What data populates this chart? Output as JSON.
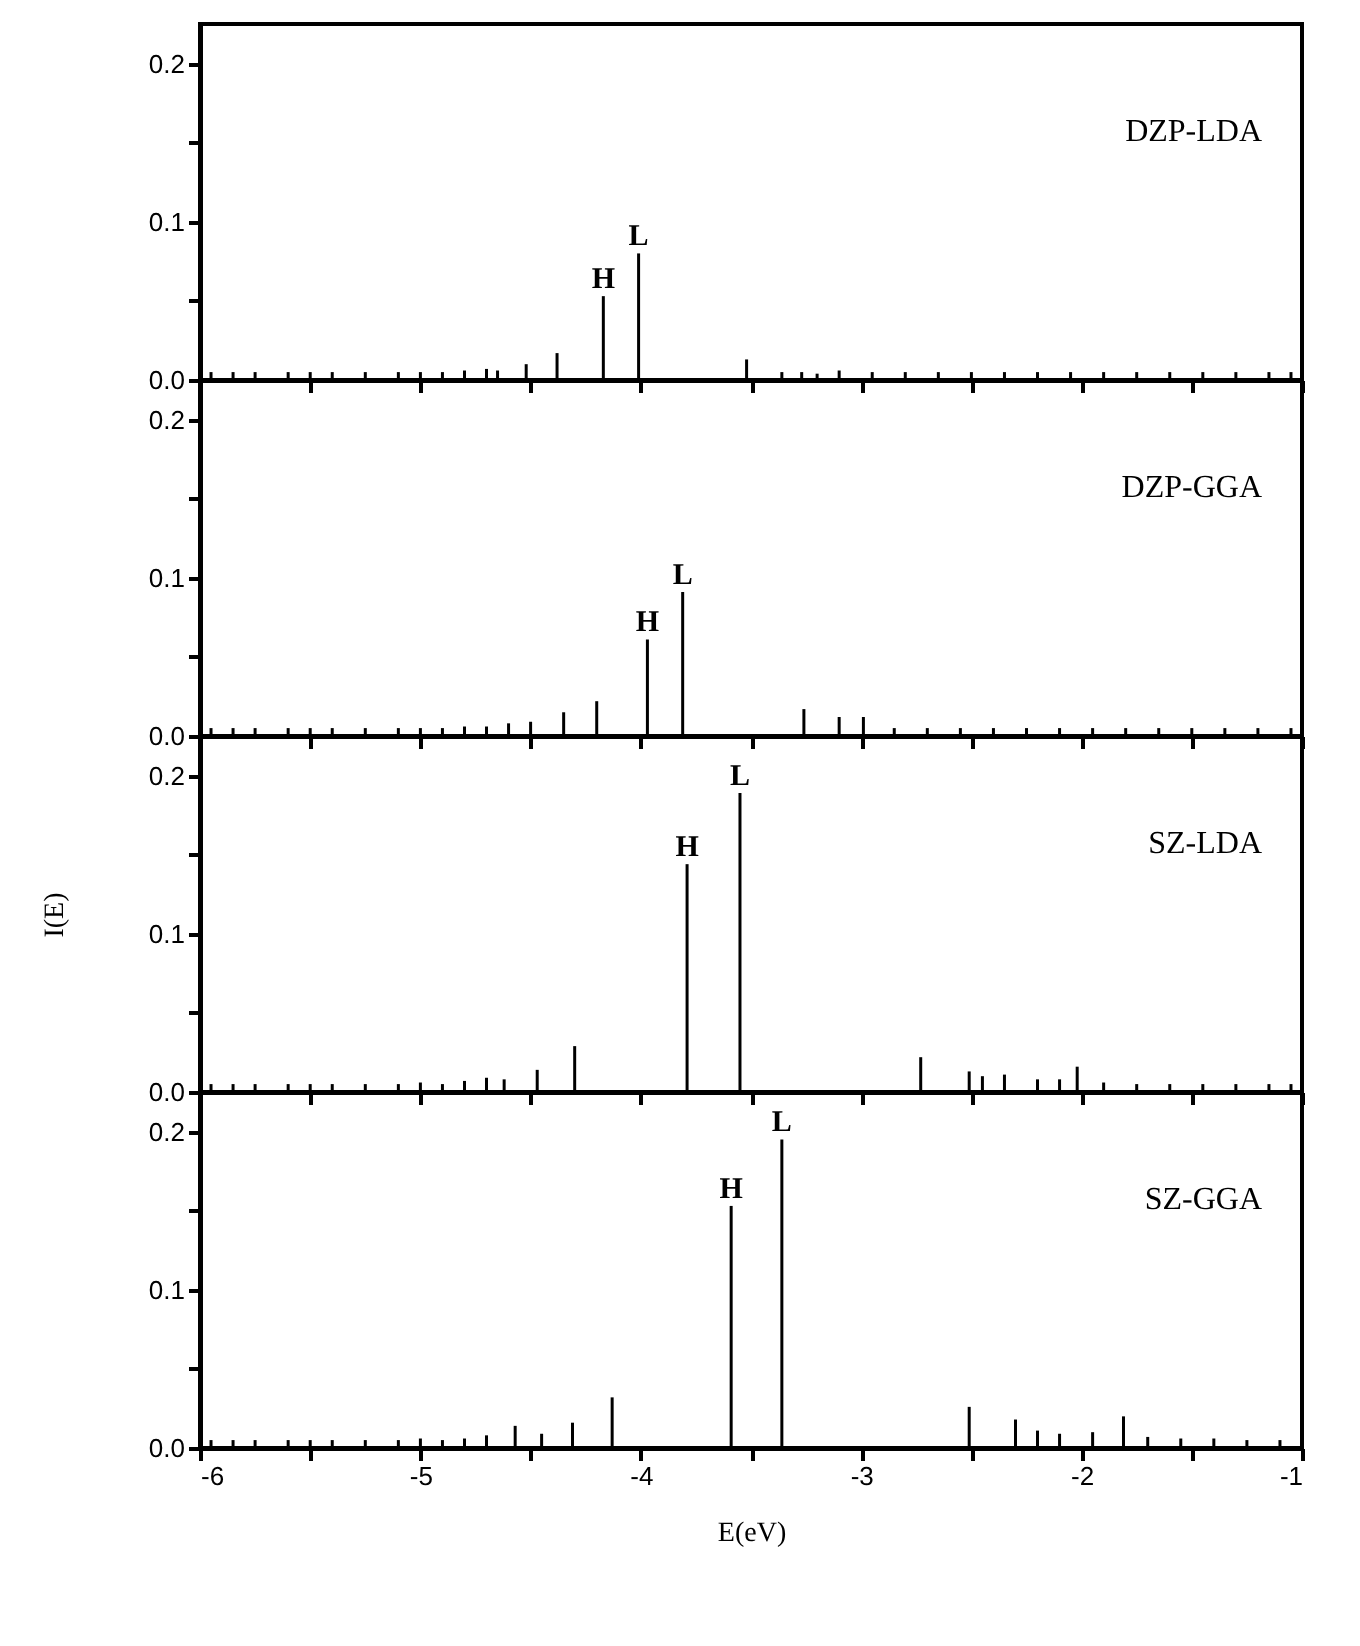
{
  "chart_data": [
    {
      "type": "bar",
      "color": "#000000",
      "xlim": [
        -6,
        -1
      ],
      "ylim": [
        0,
        0.225
      ],
      "tick_labels": "y",
      "xticks": [
        -6,
        {
          "value": -5.5,
          "label": null
        },
        -5,
        {
          "value": -4.5,
          "label": null
        },
        -4,
        {
          "value": -3.5,
          "label": null
        },
        -3,
        {
          "value": -2.5,
          "label": null
        },
        -2,
        {
          "value": -1.5,
          "label": null
        },
        -1
      ],
      "yticks": [
        {
          "value": 0,
          "label": "0.0"
        },
        {
          "value": 0.05,
          "label": null
        },
        {
          "value": 0.1,
          "label": "0.1"
        },
        {
          "value": 0.15,
          "label": null
        },
        {
          "value": 0.2,
          "label": "0.2"
        }
      ],
      "x": [
        -5.95,
        -5.85,
        -5.75,
        -5.6,
        -5.5,
        -5.4,
        -5.25,
        -5.1,
        -5.0,
        -4.9,
        -4.8,
        -4.7,
        -4.65,
        -4.52,
        -4.38,
        -4.17,
        -4.01,
        -3.52,
        -3.36,
        -3.27,
        -3.2,
        -3.1,
        -2.95,
        -2.8,
        -2.65,
        -2.5,
        -2.35,
        -2.2,
        -2.05,
        -1.9,
        -1.75,
        -1.6,
        -1.45,
        -1.3,
        -1.15,
        -1.05
      ],
      "values": [
        0.005,
        0.005,
        0.005,
        0.005,
        0.005,
        0.005,
        0.005,
        0.005,
        0.005,
        0.005,
        0.006,
        0.007,
        0.006,
        0.01,
        0.017,
        0.053,
        0.08,
        0.013,
        0.005,
        0.005,
        0.004,
        0.006,
        0.005,
        0.005,
        0.005,
        0.005,
        0.005,
        0.005,
        0.005,
        0.005,
        0.005,
        0.005,
        0.005,
        0.005,
        0.005,
        0.005
      ],
      "annotations": [
        "DZP-LDA",
        {
          "text": "H",
          "x": -4.17,
          "y": 0.053
        },
        {
          "text": "L",
          "x": -4.01,
          "y": 0.08
        }
      ]
    },
    {
      "type": "bar",
      "color": "#000000",
      "xlim": [
        -6,
        -1
      ],
      "ylim": [
        0,
        0.225
      ],
      "tick_labels": "y",
      "xticks": [
        -6,
        {
          "value": -5.5,
          "label": null
        },
        -5,
        {
          "value": -4.5,
          "label": null
        },
        -4,
        {
          "value": -3.5,
          "label": null
        },
        -3,
        {
          "value": -2.5,
          "label": null
        },
        -2,
        {
          "value": -1.5,
          "label": null
        },
        -1
      ],
      "yticks": [
        {
          "value": 0,
          "label": "0.0"
        },
        {
          "value": 0.05,
          "label": null
        },
        {
          "value": 0.1,
          "label": "0.1"
        },
        {
          "value": 0.15,
          "label": null
        },
        {
          "value": 0.2,
          "label": "0.2"
        }
      ],
      "x": [
        -5.95,
        -5.85,
        -5.75,
        -5.6,
        -5.5,
        -5.4,
        -5.25,
        -5.1,
        -5.0,
        -4.9,
        -4.8,
        -4.7,
        -4.6,
        -4.5,
        -4.35,
        -4.2,
        -3.97,
        -3.81,
        -3.26,
        -3.1,
        -2.99,
        -2.85,
        -2.7,
        -2.55,
        -2.4,
        -2.25,
        -2.1,
        -1.95,
        -1.8,
        -1.65,
        -1.5,
        -1.35,
        -1.2,
        -1.05
      ],
      "values": [
        0.005,
        0.005,
        0.005,
        0.005,
        0.005,
        0.005,
        0.005,
        0.005,
        0.005,
        0.005,
        0.006,
        0.006,
        0.008,
        0.009,
        0.015,
        0.022,
        0.061,
        0.091,
        0.017,
        0.012,
        0.012,
        0.005,
        0.005,
        0.005,
        0.005,
        0.005,
        0.005,
        0.005,
        0.005,
        0.005,
        0.005,
        0.005,
        0.005,
        0.005
      ],
      "annotations": [
        "DZP-GGA",
        {
          "text": "H",
          "x": -3.97,
          "y": 0.061
        },
        {
          "text": "L",
          "x": -3.81,
          "y": 0.091
        }
      ]
    },
    {
      "type": "bar",
      "color": "#000000",
      "xlim": [
        -6,
        -1
      ],
      "ylim": [
        0,
        0.225
      ],
      "tick_labels": "y",
      "ylabel": "I(E)",
      "xticks": [
        -6,
        {
          "value": -5.5,
          "label": null
        },
        -5,
        {
          "value": -4.5,
          "label": null
        },
        -4,
        {
          "value": -3.5,
          "label": null
        },
        -3,
        {
          "value": -2.5,
          "label": null
        },
        -2,
        {
          "value": -1.5,
          "label": null
        },
        -1
      ],
      "yticks": [
        {
          "value": 0,
          "label": "0.0"
        },
        {
          "value": 0.05,
          "label": null
        },
        {
          "value": 0.1,
          "label": "0.1"
        },
        {
          "value": 0.15,
          "label": null
        },
        {
          "value": 0.2,
          "label": "0.2"
        }
      ],
      "x": [
        -5.95,
        -5.85,
        -5.75,
        -5.6,
        -5.5,
        -5.4,
        -5.25,
        -5.1,
        -5.0,
        -4.9,
        -4.8,
        -4.7,
        -4.62,
        -4.47,
        -4.3,
        -3.79,
        -3.55,
        -2.73,
        -2.51,
        -2.45,
        -2.35,
        -2.2,
        -2.1,
        -2.02,
        -1.9,
        -1.75,
        -1.6,
        -1.45,
        -1.3,
        -1.15,
        -1.05
      ],
      "values": [
        0.005,
        0.005,
        0.005,
        0.005,
        0.005,
        0.005,
        0.005,
        0.005,
        0.006,
        0.005,
        0.007,
        0.009,
        0.008,
        0.014,
        0.029,
        0.144,
        0.189,
        0.022,
        0.013,
        0.01,
        0.011,
        0.008,
        0.008,
        0.016,
        0.006,
        0.005,
        0.005,
        0.005,
        0.005,
        0.005,
        0.005
      ],
      "annotations": [
        "SZ-LDA",
        {
          "text": "H",
          "x": -3.79,
          "y": 0.144
        },
        {
          "text": "L",
          "x": -3.55,
          "y": 0.189
        }
      ]
    },
    {
      "type": "bar",
      "color": "#000000",
      "xlim": [
        -6,
        -1
      ],
      "ylim": [
        0,
        0.225
      ],
      "xlabel": "E(eV)",
      "xticks": [
        -6,
        {
          "value": -5.5,
          "label": null
        },
        -5,
        {
          "value": -4.5,
          "label": null
        },
        -4,
        {
          "value": -3.5,
          "label": null
        },
        -3,
        {
          "value": -2.5,
          "label": null
        },
        -2,
        {
          "value": -1.5,
          "label": null
        },
        -1
      ],
      "yticks": [
        {
          "value": 0,
          "label": "0.0"
        },
        {
          "value": 0.05,
          "label": null
        },
        {
          "value": 0.1,
          "label": "0.1"
        },
        {
          "value": 0.15,
          "label": null
        },
        {
          "value": 0.2,
          "label": "0.2"
        }
      ],
      "x": [
        -5.95,
        -5.85,
        -5.75,
        -5.6,
        -5.5,
        -5.4,
        -5.25,
        -5.1,
        -5.0,
        -4.9,
        -4.8,
        -4.7,
        -4.57,
        -4.45,
        -4.31,
        -4.13,
        -3.59,
        -3.36,
        -2.51,
        -2.3,
        -2.2,
        -2.1,
        -1.95,
        -1.81,
        -1.7,
        -1.55,
        -1.4,
        -1.25,
        -1.1
      ],
      "values": [
        0.005,
        0.005,
        0.005,
        0.005,
        0.005,
        0.005,
        0.005,
        0.005,
        0.006,
        0.005,
        0.006,
        0.008,
        0.014,
        0.009,
        0.016,
        0.032,
        0.153,
        0.195,
        0.026,
        0.018,
        0.011,
        0.009,
        0.01,
        0.02,
        0.007,
        0.006,
        0.006,
        0.005,
        0.005
      ],
      "annotations": [
        "SZ-GGA",
        {
          "text": "H",
          "x": -3.59,
          "y": 0.153
        },
        {
          "text": "L",
          "x": -3.36,
          "y": 0.195
        }
      ]
    }
  ]
}
